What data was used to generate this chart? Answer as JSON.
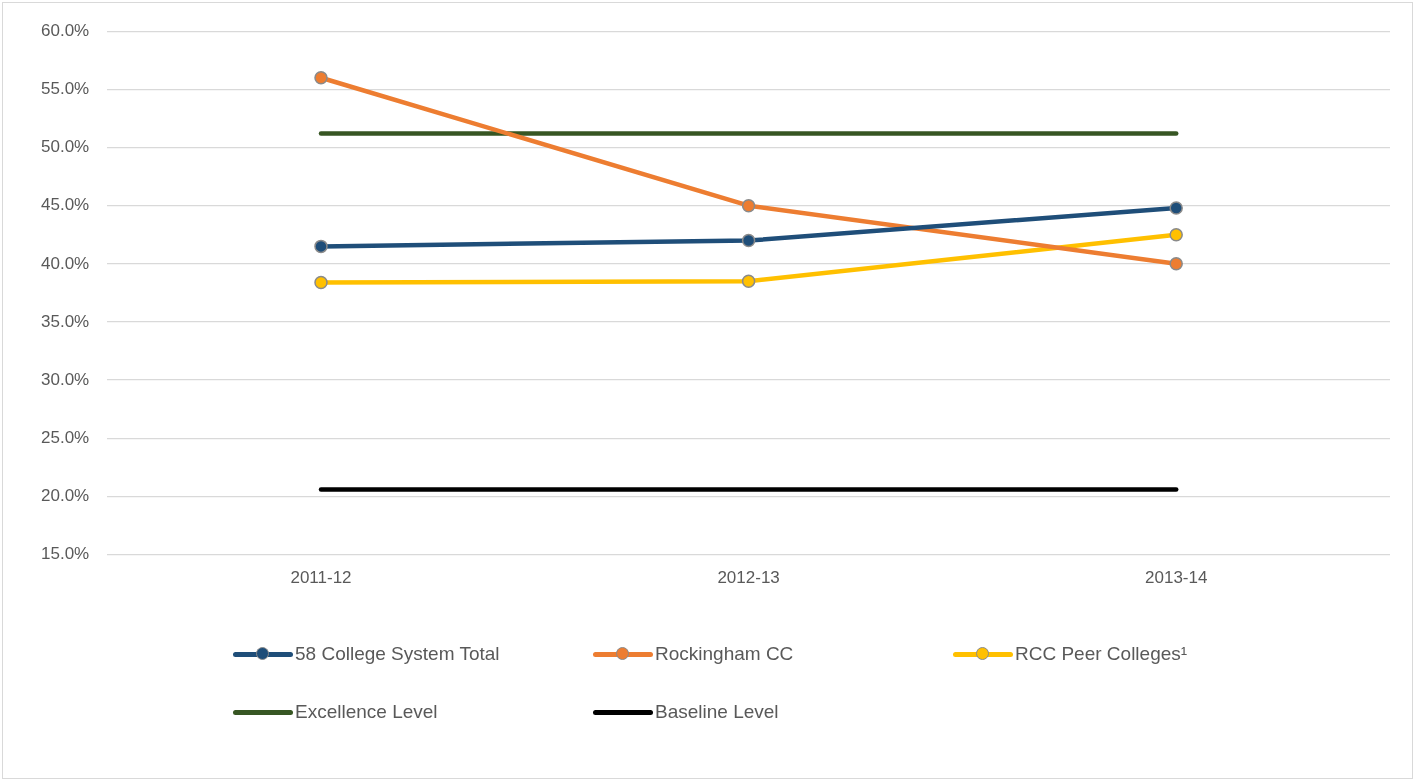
{
  "chart_data": {
    "type": "line",
    "categories": [
      "2011-12",
      "2012-13",
      "2013-14"
    ],
    "series": [
      {
        "name": "58 College System Total",
        "color": "#1f4e79",
        "values": [
          41.5,
          42.0,
          44.8
        ],
        "marker": "circle"
      },
      {
        "name": "Rockingham CC",
        "color": "#ed7d31",
        "values": [
          56.0,
          45.0,
          40.0
        ],
        "marker": "circle"
      },
      {
        "name": "RCC Peer Colleges¹",
        "color": "#ffc000",
        "values": [
          38.4,
          38.5,
          42.5
        ],
        "marker": "circle"
      },
      {
        "name": "Excellence Level",
        "color": "#375623",
        "values": [
          51.2,
          51.2,
          51.2
        ],
        "marker": "none"
      },
      {
        "name": "Baseline Level",
        "color": "#000000",
        "values": [
          20.6,
          20.6,
          20.6
        ],
        "marker": "none"
      }
    ],
    "ylim": [
      15,
      60
    ],
    "yticks": [
      {
        "value": 15,
        "label": "15.0%"
      },
      {
        "value": 20,
        "label": "20.0%"
      },
      {
        "value": 25,
        "label": "25.0%"
      },
      {
        "value": 30,
        "label": "30.0%"
      },
      {
        "value": 35,
        "label": "35.0%"
      },
      {
        "value": 40,
        "label": "40.0%"
      },
      {
        "value": 45,
        "label": "45.0%"
      },
      {
        "value": 50,
        "label": "50.0%"
      },
      {
        "value": 55,
        "label": "55.0%"
      },
      {
        "value": 60,
        "label": "60.0%"
      }
    ],
    "grid": "y",
    "legend": "bottom"
  }
}
